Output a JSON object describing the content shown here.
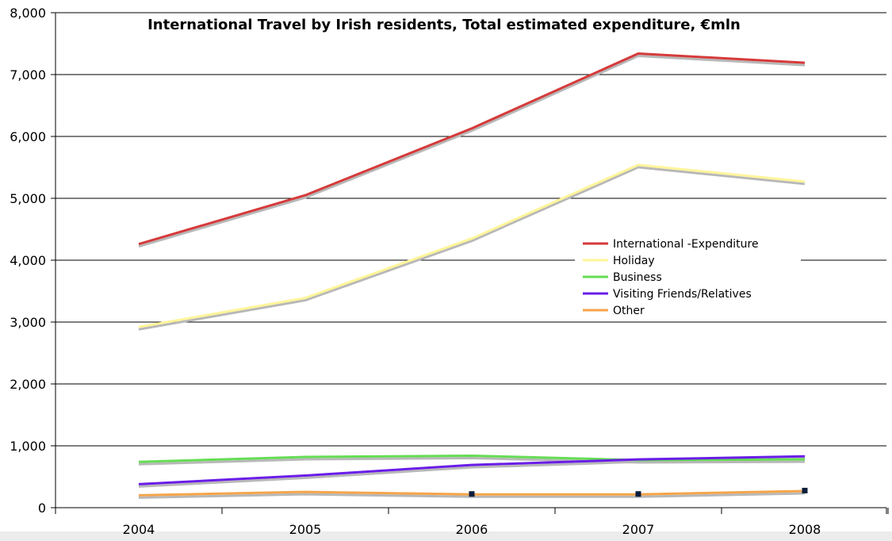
{
  "chart_data": {
    "type": "line",
    "title": "International Travel by Irish residents, Total estimated expenditure, €mln",
    "xlabel": "",
    "ylabel": "",
    "categories": [
      "2004",
      "2005",
      "2006",
      "2007",
      "2008"
    ],
    "ylim": [
      0,
      8000
    ],
    "yticks": [
      0,
      1000,
      2000,
      3000,
      4000,
      5000,
      6000,
      7000,
      8000
    ],
    "ytick_labels": [
      "0",
      "1,000",
      "2,000",
      "3,000",
      "4,000",
      "5,000",
      "6,000",
      "7,000",
      "8,000"
    ],
    "grid": true,
    "legend_position": "center-right",
    "series": [
      {
        "name": "International -Expenditure",
        "color": "#d63a3a",
        "values": [
          4260,
          5050,
          6130,
          7340,
          7190
        ]
      },
      {
        "name": "Holiday",
        "color": "#fff59a",
        "values": [
          2920,
          3390,
          4350,
          5540,
          5270
        ]
      },
      {
        "name": "Business",
        "color": "#66dd55",
        "values": [
          740,
          820,
          840,
          770,
          780
        ]
      },
      {
        "name": "Visiting Friends/Relatives",
        "color": "#6a1de8",
        "values": [
          380,
          520,
          690,
          780,
          830
        ]
      },
      {
        "name": "Other",
        "color": "#f5a54a",
        "values": [
          200,
          255,
          215,
          215,
          270
        ]
      }
    ]
  }
}
